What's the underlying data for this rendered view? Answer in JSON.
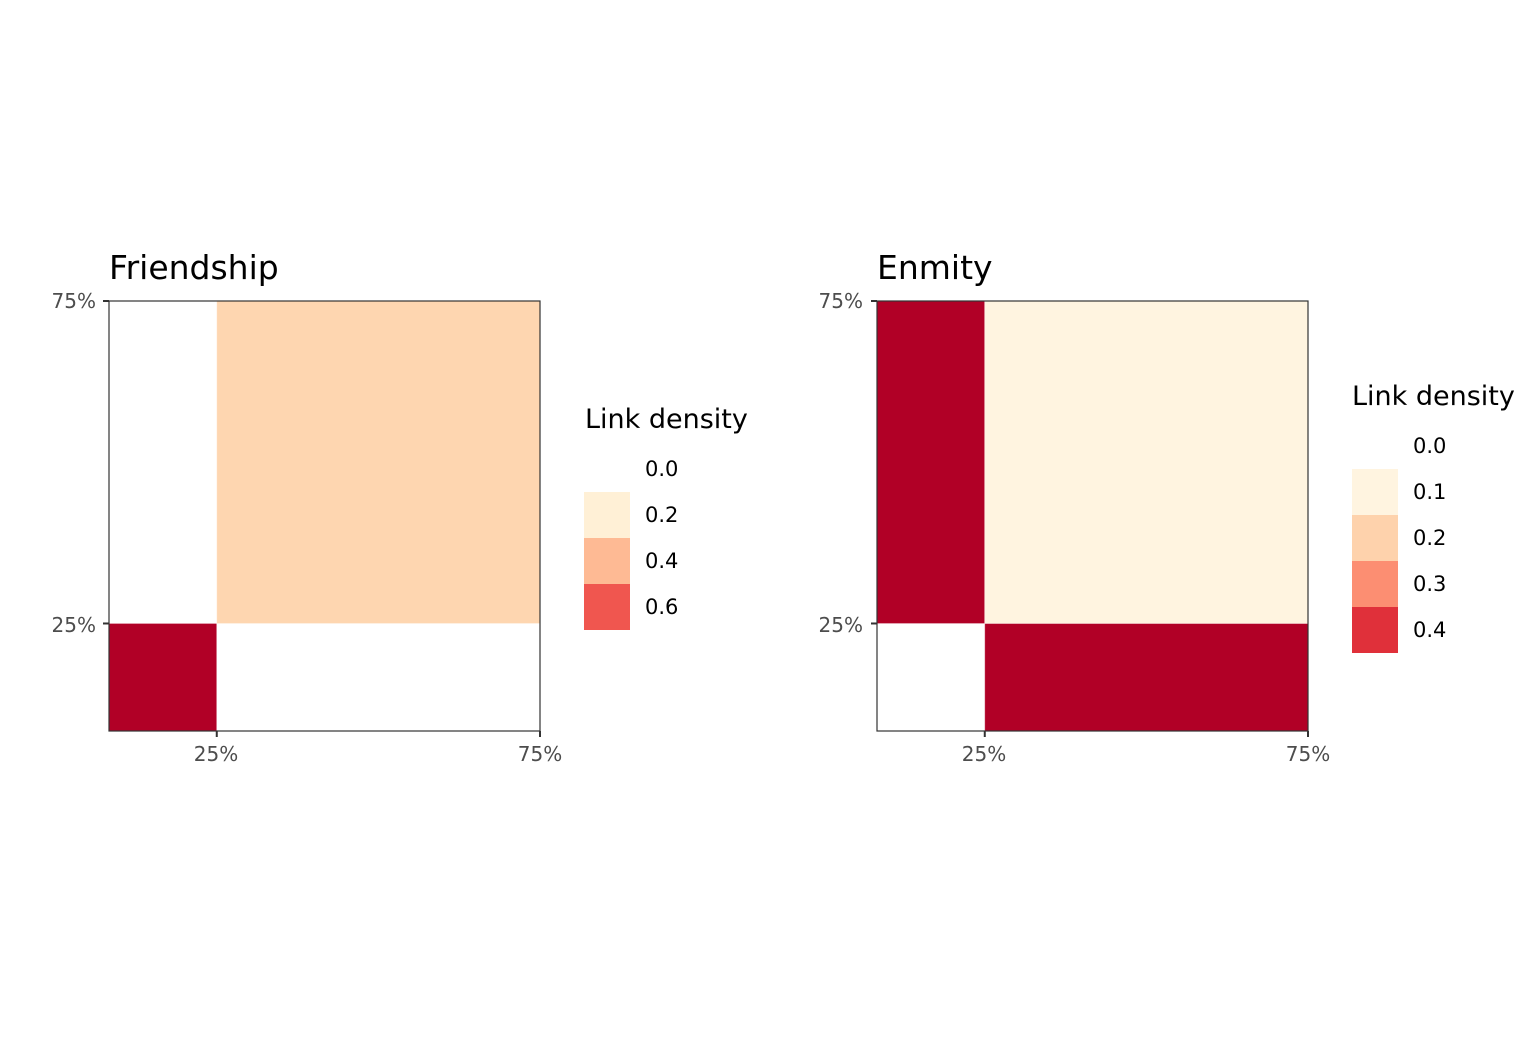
{
  "chart_data": [
    {
      "type": "heatmap",
      "title": "Friendship",
      "xlabel": "",
      "ylabel": "",
      "x_ticks": [
        "25%",
        "75%"
      ],
      "y_ticks": [
        "25%",
        "75%"
      ],
      "x_breaks": [
        0.25,
        0.75
      ],
      "y_breaks": [
        0.25,
        0.75
      ],
      "xlim": [
        0.0833,
        0.75
      ],
      "ylim": [
        0.0833,
        0.75
      ],
      "grid": false,
      "cells": [
        {
          "x": [
            0.0833,
            0.25
          ],
          "y": [
            0.0833,
            0.25
          ],
          "value": 0.7,
          "color": "#b10026"
        },
        {
          "x": [
            0.25,
            0.75
          ],
          "y": [
            0.0833,
            0.25
          ],
          "value": 0.0,
          "color": "#ffffff"
        },
        {
          "x": [
            0.0833,
            0.25
          ],
          "y": [
            0.25,
            0.75
          ],
          "value": 0.0,
          "color": "#ffffff"
        },
        {
          "x": [
            0.25,
            0.75
          ],
          "y": [
            0.25,
            0.75
          ],
          "value": 0.3,
          "color": "#fed6b0"
        }
      ],
      "legend": {
        "title": "Link density",
        "position": "right",
        "entries": [
          {
            "label": "0.0",
            "color": "#ffffff"
          },
          {
            "label": "0.2",
            "color": "#fff0d6"
          },
          {
            "label": "0.4",
            "color": "#feba94"
          },
          {
            "label": "0.6",
            "color": "#f0564f"
          }
        ]
      }
    },
    {
      "type": "heatmap",
      "title": "Enmity",
      "xlabel": "",
      "ylabel": "",
      "x_ticks": [
        "25%",
        "75%"
      ],
      "y_ticks": [
        "25%",
        "75%"
      ],
      "x_breaks": [
        0.25,
        0.75
      ],
      "y_breaks": [
        0.25,
        0.75
      ],
      "xlim": [
        0.0833,
        0.75
      ],
      "ylim": [
        0.0833,
        0.75
      ],
      "grid": false,
      "cells": [
        {
          "x": [
            0.0833,
            0.25
          ],
          "y": [
            0.0833,
            0.25
          ],
          "value": 0.0,
          "color": "#ffffff"
        },
        {
          "x": [
            0.25,
            0.75
          ],
          "y": [
            0.0833,
            0.25
          ],
          "value": 0.45,
          "color": "#b10026"
        },
        {
          "x": [
            0.0833,
            0.25
          ],
          "y": [
            0.25,
            0.75
          ],
          "value": 0.45,
          "color": "#b10026"
        },
        {
          "x": [
            0.25,
            0.75
          ],
          "y": [
            0.25,
            0.75
          ],
          "value": 0.1,
          "color": "#fff4e0"
        }
      ],
      "legend": {
        "title": "Link density",
        "position": "right",
        "entries": [
          {
            "label": "0.0",
            "color": "#ffffff"
          },
          {
            "label": "0.1",
            "color": "#fff4e0"
          },
          {
            "label": "0.2",
            "color": "#fed2ac"
          },
          {
            "label": "0.3",
            "color": "#fc8e72"
          },
          {
            "label": "0.4",
            "color": "#e0303a"
          }
        ]
      }
    }
  ]
}
